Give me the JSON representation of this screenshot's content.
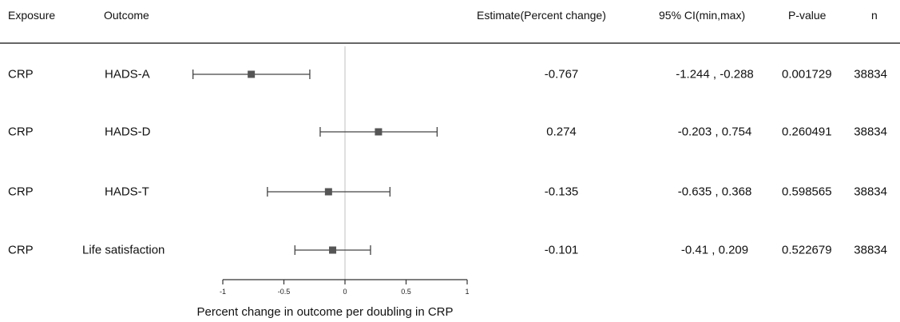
{
  "headers": {
    "exposure": "Exposure",
    "outcome": "Outcome",
    "estimate": "Estimate(Percent change)",
    "ci": "95% CI(min,max)",
    "pvalue": "P-value",
    "n": "n"
  },
  "rows": [
    {
      "exposure": "CRP",
      "outcome": "HADS-A",
      "estimate": "-0.767",
      "ci": "-1.244 , -0.288",
      "pvalue": "0.001729",
      "n": "38834"
    },
    {
      "exposure": "CRP",
      "outcome": "HADS-D",
      "estimate": "0.274",
      "ci": "-0.203 , 0.754",
      "pvalue": "0.260491",
      "n": "38834"
    },
    {
      "exposure": "CRP",
      "outcome": "HADS-T",
      "estimate": "-0.135",
      "ci": "-0.635 , 0.368",
      "pvalue": "0.598565",
      "n": "38834"
    },
    {
      "exposure": "CRP",
      "outcome": "Life satisfaction",
      "estimate": "-0.101",
      "ci": "-0.41 , 0.209",
      "pvalue": "0.522679",
      "n": "38834"
    }
  ],
  "chart_data": {
    "type": "scatter",
    "subtype": "forest-plot",
    "categories": [
      "HADS-A",
      "HADS-D",
      "HADS-T",
      "Life satisfaction"
    ],
    "series": [
      {
        "values": [
          -0.767,
          0.274,
          -0.135,
          -0.101
        ],
        "lower": [
          -1.244,
          -0.203,
          -0.635,
          -0.41
        ],
        "upper": [
          -0.288,
          0.754,
          0.368,
          0.209
        ]
      }
    ],
    "xlabel": "Percent change in outcome per doubling in CRP",
    "xticks": [
      -1,
      -0.5,
      0,
      0.5,
      1
    ],
    "xtick_labels": [
      "-1",
      "-0.5",
      "0",
      "0.5",
      "1"
    ],
    "xlim": [
      -1,
      1
    ],
    "reference_line": 0,
    "colors": {
      "marker": "#555555",
      "whisker": "#444444",
      "reference": "#cccccc",
      "rule": "#333333"
    }
  }
}
